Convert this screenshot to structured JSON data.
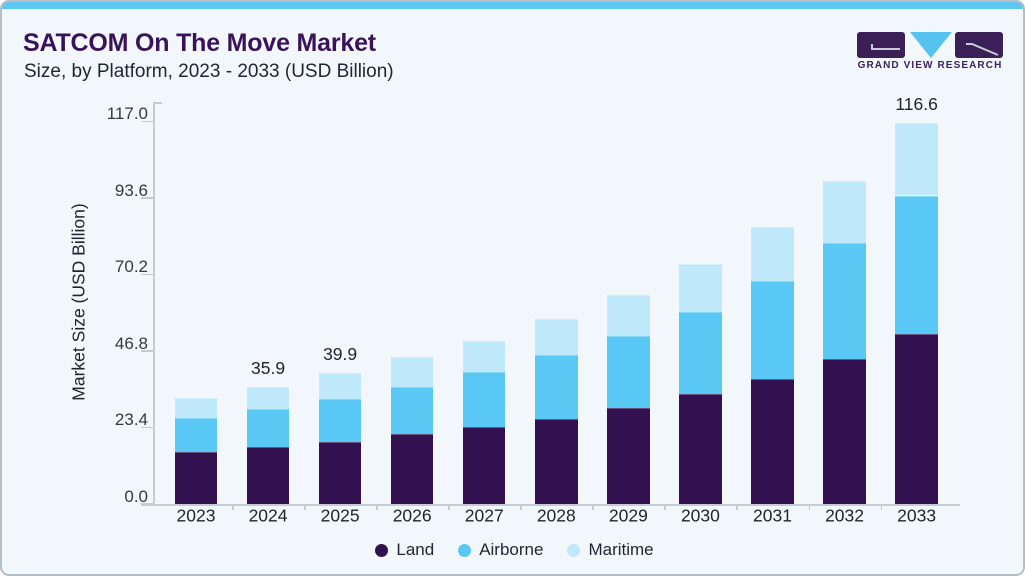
{
  "page": {
    "title": "SATCOM On The Move Market",
    "subtitle": "Size, by Platform, 2023 - 2033 (USD Billion)"
  },
  "logo": {
    "text": "GRAND VIEW RESEARCH",
    "block_color": "#3a2056",
    "triangle_color": "#55c3ee",
    "glyph_color": "#c9cdd6"
  },
  "colors": {
    "card_background": "#f1f7fa",
    "top_accent_bar": "#5ec7f1",
    "title_purple": "#3a1259",
    "text_dark": "#1c2732",
    "axis_gray": "#c5cbd3",
    "land": "#331150",
    "airborne": "#5ac8f5",
    "maritime": "#bfe8fa"
  },
  "chart_data": {
    "type": "bar",
    "stacked": true,
    "title": "SATCOM On The Move Market Size, by Platform, 2023 - 2033 (USD Billion)",
    "xlabel": "",
    "ylabel": "Market Size (USD Billion)",
    "categories": [
      "2023",
      "2024",
      "2025",
      "2026",
      "2027",
      "2028",
      "2029",
      "2030",
      "2031",
      "2032",
      "2033"
    ],
    "series": [
      {
        "name": "Land",
        "color": "#331150",
        "values": [
          15.9,
          17.5,
          19.1,
          21.3,
          23.4,
          26.1,
          29.3,
          33.5,
          38.1,
          44.2,
          52.0
        ]
      },
      {
        "name": "Airborne",
        "color": "#5ac8f5",
        "values": [
          10.3,
          11.6,
          12.9,
          14.6,
          16.9,
          19.4,
          22.1,
          25.3,
          30.2,
          35.7,
          42.3
        ]
      },
      {
        "name": "Maritime",
        "color": "#bfe8fa",
        "values": [
          6.3,
          6.8,
          7.9,
          9.0,
          9.4,
          10.9,
          12.6,
          14.6,
          16.5,
          18.9,
          22.3
        ]
      }
    ],
    "bar_labels": [
      "",
      "35.9",
      "39.9",
      "",
      "",
      "",
      "",
      "",
      "",
      "",
      "116.6"
    ],
    "y_ticks": [
      0.0,
      23.4,
      46.8,
      70.2,
      93.6,
      117.0
    ],
    "y_tick_labels": [
      "0.0",
      "23.4",
      "46.8",
      "70.2",
      "93.6",
      "117.0"
    ],
    "ylim": [
      0,
      117
    ],
    "grid": false,
    "legend_position": "bottom"
  }
}
